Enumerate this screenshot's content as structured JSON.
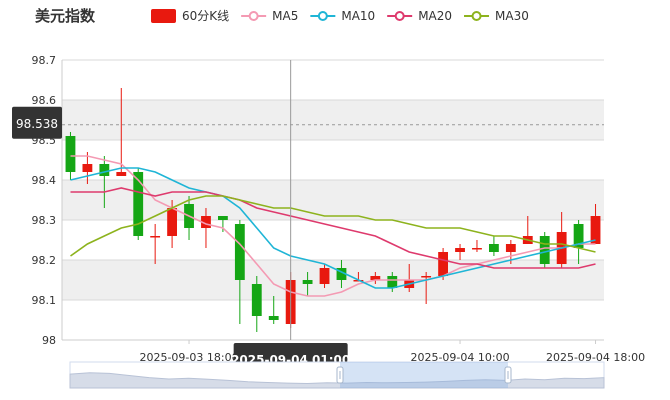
{
  "title": "美元指数",
  "legend": [
    {
      "name": "60分K线",
      "kind": "rect",
      "color": "#e8190f"
    },
    {
      "name": "MA5",
      "kind": "line",
      "color": "#f49ab3"
    },
    {
      "name": "MA10",
      "kind": "line",
      "color": "#1fb5d6"
    },
    {
      "name": "MA20",
      "kind": "line",
      "color": "#de3a6d"
    },
    {
      "name": "MA30",
      "kind": "line",
      "color": "#8db31d"
    }
  ],
  "colors": {
    "up": "#e8190f",
    "down": "#15a615",
    "crosshair": "#999999",
    "tooltip_bg": "#333333"
  },
  "crosshair": {
    "price_label": "98.538",
    "time_label": "2025-09-04 01:00"
  },
  "chart_data": {
    "type": "candlestick",
    "y_ticks": [
      "98",
      "98.1",
      "98.2",
      "98.3",
      "98.4",
      "98.5",
      "98.6",
      "98.7"
    ],
    "ylim": [
      98.0,
      98.7
    ],
    "x_ticks": [
      {
        "label": "2025-09-03 18:00",
        "index": 7.5
      },
      {
        "label": "2025-09-04 10:00",
        "index": 23.5
      },
      {
        "label": "2025-09-04 18:00",
        "index": 31.5
      }
    ],
    "crosshair_index": 13,
    "candles": [
      {
        "o": 98.51,
        "c": 98.42,
        "h": 98.52,
        "l": 98.4
      },
      {
        "o": 98.42,
        "c": 98.44,
        "h": 98.47,
        "l": 98.39
      },
      {
        "o": 98.44,
        "c": 98.41,
        "h": 98.46,
        "l": 98.33
      },
      {
        "o": 98.41,
        "c": 98.42,
        "h": 98.63,
        "l": 98.41
      },
      {
        "o": 98.42,
        "c": 98.26,
        "h": 98.43,
        "l": 98.25
      },
      {
        "o": 98.26,
        "c": 98.26,
        "h": 98.29,
        "l": 98.19
      },
      {
        "o": 98.26,
        "c": 98.33,
        "h": 98.35,
        "l": 98.23
      },
      {
        "o": 98.34,
        "c": 98.28,
        "h": 98.36,
        "l": 98.25
      },
      {
        "o": 98.28,
        "c": 98.31,
        "h": 98.33,
        "l": 98.23
      },
      {
        "o": 98.31,
        "c": 98.3,
        "h": 98.31,
        "l": 98.27
      },
      {
        "o": 98.29,
        "c": 98.15,
        "h": 98.3,
        "l": 98.04
      },
      {
        "o": 98.14,
        "c": 98.06,
        "h": 98.16,
        "l": 98.02
      },
      {
        "o": 98.06,
        "c": 98.05,
        "h": 98.11,
        "l": 98.04
      },
      {
        "o": 98.04,
        "c": 98.15,
        "h": 98.17,
        "l": 98.03
      },
      {
        "o": 98.15,
        "c": 98.14,
        "h": 98.17,
        "l": 98.11
      },
      {
        "o": 98.14,
        "c": 98.18,
        "h": 98.19,
        "l": 98.13
      },
      {
        "o": 98.18,
        "c": 98.15,
        "h": 98.2,
        "l": 98.13
      },
      {
        "o": 98.15,
        "c": 98.15,
        "h": 98.17,
        "l": 98.15
      },
      {
        "o": 98.15,
        "c": 98.16,
        "h": 98.17,
        "l": 98.14
      },
      {
        "o": 98.16,
        "c": 98.13,
        "h": 98.17,
        "l": 98.12
      },
      {
        "o": 98.13,
        "c": 98.15,
        "h": 98.19,
        "l": 98.12
      },
      {
        "o": 98.16,
        "c": 98.16,
        "h": 98.17,
        "l": 98.09
      },
      {
        "o": 98.16,
        "c": 98.22,
        "h": 98.23,
        "l": 98.15
      },
      {
        "o": 98.22,
        "c": 98.23,
        "h": 98.24,
        "l": 98.2
      },
      {
        "o": 98.23,
        "c": 98.23,
        "h": 98.25,
        "l": 98.22
      },
      {
        "o": 98.24,
        "c": 98.22,
        "h": 98.26,
        "l": 98.21
      },
      {
        "o": 98.22,
        "c": 98.24,
        "h": 98.25,
        "l": 98.19
      },
      {
        "o": 98.24,
        "c": 98.26,
        "h": 98.31,
        "l": 98.24
      },
      {
        "o": 98.26,
        "c": 98.19,
        "h": 98.27,
        "l": 98.18
      },
      {
        "o": 98.19,
        "c": 98.27,
        "h": 98.32,
        "l": 98.18
      },
      {
        "o": 98.29,
        "c": 98.23,
        "h": 98.3,
        "l": 98.19
      },
      {
        "o": 98.24,
        "c": 98.31,
        "h": 98.34,
        "l": 98.24
      }
    ],
    "series": [
      {
        "name": "MA5",
        "values": [
          98.46,
          98.46,
          98.45,
          98.44,
          98.4,
          98.35,
          98.33,
          98.31,
          98.29,
          98.28,
          98.24,
          98.19,
          98.14,
          98.12,
          98.11,
          98.11,
          98.12,
          98.14,
          98.15,
          98.15,
          98.15,
          98.15,
          98.16,
          98.18,
          98.19,
          98.2,
          98.21,
          98.22,
          98.23,
          98.23,
          98.24,
          98.24
        ]
      },
      {
        "name": "MA10",
        "values": [
          98.4,
          98.41,
          98.42,
          98.43,
          98.43,
          98.42,
          98.4,
          98.38,
          98.37,
          98.36,
          98.33,
          98.28,
          98.23,
          98.21,
          98.2,
          98.19,
          98.17,
          98.15,
          98.13,
          98.13,
          98.14,
          98.15,
          98.16,
          98.17,
          98.18,
          98.19,
          98.2,
          98.21,
          98.22,
          98.23,
          98.24,
          98.25
        ]
      },
      {
        "name": "MA20",
        "values": [
          98.37,
          98.37,
          98.37,
          98.38,
          98.37,
          98.36,
          98.37,
          98.37,
          98.37,
          98.36,
          98.35,
          98.33,
          98.32,
          98.31,
          98.3,
          98.29,
          98.28,
          98.27,
          98.26,
          98.24,
          98.22,
          98.21,
          98.2,
          98.19,
          98.19,
          98.18,
          98.18,
          98.18,
          98.18,
          98.18,
          98.18,
          98.19
        ]
      },
      {
        "name": "MA30",
        "values": [
          98.21,
          98.24,
          98.26,
          98.28,
          98.29,
          98.31,
          98.33,
          98.35,
          98.36,
          98.36,
          98.35,
          98.34,
          98.33,
          98.33,
          98.32,
          98.31,
          98.31,
          98.31,
          98.3,
          98.3,
          98.29,
          98.28,
          98.28,
          98.28,
          98.27,
          98.26,
          98.26,
          98.25,
          98.24,
          98.24,
          98.23,
          98.22
        ]
      }
    ]
  }
}
